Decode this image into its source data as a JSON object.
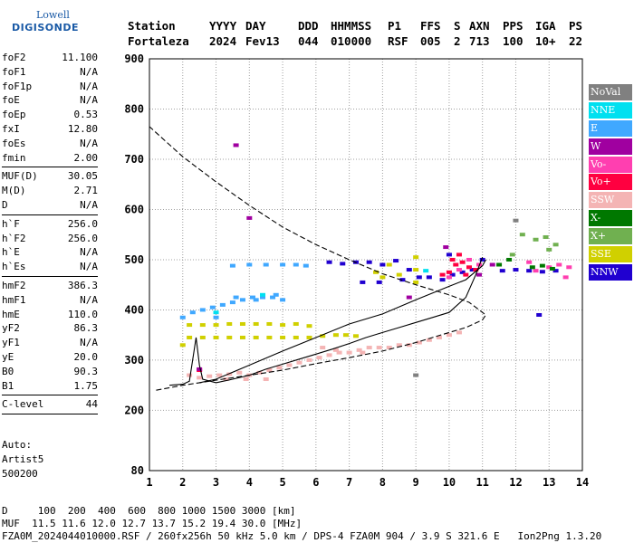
{
  "logo": {
    "line1": "Lowell",
    "line2": "DIGISONDE"
  },
  "header": {
    "labels": [
      "Station",
      "YYYY",
      "DAY",
      "DDD",
      "HHMMSS",
      "P1",
      "FFS",
      "S",
      "AXN",
      "PPS",
      "IGA",
      "PS"
    ],
    "values": [
      "Fortaleza",
      "2024",
      "Fev13",
      "044",
      "010000",
      "RSF",
      "005",
      "2",
      "713",
      "100",
      "10+",
      "22"
    ]
  },
  "params": {
    "group1": [
      {
        "k": "foF2",
        "v": "11.100"
      },
      {
        "k": "foF1",
        "v": "N/A"
      },
      {
        "k": "foF1p",
        "v": "N/A"
      },
      {
        "k": "foE",
        "v": "N/A"
      },
      {
        "k": "foEp",
        "v": "0.53"
      },
      {
        "k": "fxI",
        "v": "12.80"
      },
      {
        "k": "foEs",
        "v": "N/A"
      },
      {
        "k": "fmin",
        "v": "2.00"
      }
    ],
    "group2": [
      {
        "k": "MUF(D)",
        "v": "30.05"
      },
      {
        "k": "M(D)",
        "v": "2.71"
      },
      {
        "k": "D",
        "v": "N/A"
      }
    ],
    "group3": [
      {
        "k": "h`F",
        "v": "256.0"
      },
      {
        "k": "h`F2",
        "v": "256.0"
      },
      {
        "k": "h`E",
        "v": "N/A"
      },
      {
        "k": "h`Es",
        "v": "N/A"
      }
    ],
    "group4": [
      {
        "k": "hmF2",
        "v": "386.3"
      },
      {
        "k": "hmF1",
        "v": "N/A"
      },
      {
        "k": "hmE",
        "v": "110.0"
      },
      {
        "k": "yF2",
        "v": "86.3"
      },
      {
        "k": "yF1",
        "v": "N/A"
      },
      {
        "k": "yE",
        "v": "20.0"
      },
      {
        "k": "B0",
        "v": "90.3"
      },
      {
        "k": "B1",
        "v": "1.75"
      }
    ],
    "group5": [
      {
        "k": "C-level",
        "v": "44"
      }
    ]
  },
  "auto": {
    "line1": "Auto:",
    "line2": "Artist5",
    "line3": "500200"
  },
  "legend": [
    {
      "label": "NoVal",
      "color": "#808080"
    },
    {
      "label": "NNE",
      "color": "#00e0f0"
    },
    {
      "label": "E",
      "color": "#40a8ff"
    },
    {
      "label": "W",
      "color": "#a000a0"
    },
    {
      "label": "Vo-",
      "color": "#ff3fb0"
    },
    {
      "label": "Vo+",
      "color": "#ff0040"
    },
    {
      "label": "SSW",
      "color": "#f4b4b4"
    },
    {
      "label": "X-",
      "color": "#007800"
    },
    {
      "label": "X+",
      "color": "#70b050"
    },
    {
      "label": "SSE",
      "color": "#d0d000"
    },
    {
      "label": "NNW",
      "color": "#2000d0"
    }
  ],
  "footer": {
    "d_line": "D     100  200  400  600  800 1000 1500 3000 [km]",
    "muf_line": "MUF  11.5 11.6 12.0 12.7 13.7 15.2 19.4 30.0 [MHz]",
    "file_line": "FZA0M_2024044010000.RSF / 260fx256h 50 kHz 5.0 km / DPS-4 FZA0M 904 / 3.9 S 321.6 E   Ion2Png 1.3.20"
  },
  "chart_data": {
    "type": "scatter",
    "title": "",
    "xlabel": "",
    "ylabel": "",
    "xlim": [
      1,
      14
    ],
    "ylim": [
      80,
      900
    ],
    "x_ticks": [
      1,
      2,
      3,
      4,
      5,
      6,
      7,
      8,
      9,
      10,
      11,
      12,
      13,
      14
    ],
    "y_ticks": [
      80,
      200,
      300,
      400,
      500,
      600,
      700,
      800,
      900
    ],
    "grid": true,
    "series": [
      {
        "name": "E",
        "color": "#40a8ff",
        "points": [
          [
            2.0,
            385
          ],
          [
            2.3,
            395
          ],
          [
            2.6,
            400
          ],
          [
            2.9,
            405
          ],
          [
            3.2,
            410
          ],
          [
            3.5,
            415
          ],
          [
            3.8,
            420
          ],
          [
            4.1,
            425
          ],
          [
            4.4,
            425
          ],
          [
            4.7,
            425
          ],
          [
            5.0,
            420
          ],
          [
            3.0,
            385
          ],
          [
            3.6,
            425
          ],
          [
            4.2,
            420
          ],
          [
            4.8,
            430
          ],
          [
            3.5,
            488
          ],
          [
            4.0,
            490
          ],
          [
            4.5,
            490
          ],
          [
            5.0,
            490
          ],
          [
            5.4,
            490
          ],
          [
            5.7,
            488
          ]
        ]
      },
      {
        "name": "SSE",
        "color": "#d0d000",
        "points": [
          [
            2.2,
            370
          ],
          [
            2.6,
            370
          ],
          [
            3.0,
            370
          ],
          [
            3.4,
            372
          ],
          [
            3.8,
            372
          ],
          [
            4.2,
            372
          ],
          [
            4.6,
            372
          ],
          [
            5.0,
            370
          ],
          [
            5.4,
            372
          ],
          [
            5.8,
            368
          ],
          [
            2.2,
            345
          ],
          [
            2.6,
            345
          ],
          [
            3.0,
            345
          ],
          [
            3.4,
            345
          ],
          [
            3.8,
            345
          ],
          [
            4.2,
            345
          ],
          [
            4.6,
            345
          ],
          [
            5.0,
            345
          ],
          [
            5.4,
            345
          ],
          [
            5.8,
            345
          ],
          [
            6.2,
            348
          ],
          [
            6.6,
            350
          ],
          [
            6.9,
            350
          ],
          [
            7.2,
            348
          ],
          [
            2.0,
            330
          ],
          [
            8.0,
            465
          ],
          [
            8.5,
            470
          ],
          [
            9.0,
            480
          ],
          [
            9.0,
            505
          ],
          [
            9.0,
            455
          ],
          [
            8.2,
            490
          ],
          [
            7.8,
            475
          ]
        ]
      },
      {
        "name": "SSW",
        "color": "#f4b4b4",
        "points": [
          [
            2.5,
            265
          ],
          [
            2.8,
            268
          ],
          [
            3.1,
            270
          ],
          [
            3.4,
            272
          ],
          [
            3.7,
            275
          ],
          [
            4.0,
            270
          ],
          [
            4.3,
            275
          ],
          [
            4.6,
            280
          ],
          [
            4.9,
            285
          ],
          [
            5.2,
            290
          ],
          [
            5.5,
            295
          ],
          [
            5.8,
            300
          ],
          [
            6.1,
            305
          ],
          [
            6.4,
            310
          ],
          [
            6.7,
            315
          ],
          [
            7.0,
            315
          ],
          [
            7.3,
            320
          ],
          [
            7.6,
            325
          ],
          [
            7.9,
            325
          ],
          [
            8.2,
            325
          ],
          [
            8.5,
            330
          ],
          [
            8.8,
            330
          ],
          [
            9.1,
            335
          ],
          [
            9.4,
            340
          ],
          [
            9.7,
            345
          ],
          [
            10.0,
            350
          ],
          [
            10.3,
            355
          ],
          [
            6.2,
            325
          ],
          [
            6.6,
            320
          ],
          [
            7.4,
            315
          ],
          [
            3.3,
            262
          ],
          [
            3.9,
            262
          ],
          [
            4.5,
            262
          ],
          [
            2.2,
            270
          ]
        ]
      },
      {
        "name": "NNW",
        "color": "#2000d0",
        "points": [
          [
            6.4,
            495
          ],
          [
            6.8,
            492
          ],
          [
            7.2,
            495
          ],
          [
            7.6,
            495
          ],
          [
            8.0,
            490
          ],
          [
            8.4,
            498
          ],
          [
            8.8,
            480
          ],
          [
            9.1,
            465
          ],
          [
            9.4,
            465
          ],
          [
            9.8,
            460
          ],
          [
            10.1,
            470
          ],
          [
            10.4,
            475
          ],
          [
            10.7,
            480
          ],
          [
            11.0,
            500
          ],
          [
            11.6,
            478
          ],
          [
            12.0,
            480
          ],
          [
            12.4,
            478
          ],
          [
            12.8,
            476
          ],
          [
            13.2,
            478
          ],
          [
            7.4,
            455
          ],
          [
            7.9,
            455
          ],
          [
            12.7,
            390
          ],
          [
            10.0,
            510
          ],
          [
            8.6,
            460
          ]
        ]
      },
      {
        "name": "Vo+",
        "color": "#ff0040",
        "points": [
          [
            9.8,
            470
          ],
          [
            10.0,
            475
          ],
          [
            10.2,
            490
          ],
          [
            10.4,
            495
          ],
          [
            10.6,
            485
          ],
          [
            10.8,
            480
          ],
          [
            10.1,
            500
          ],
          [
            10.5,
            470
          ],
          [
            2.5,
            280
          ],
          [
            10.3,
            510
          ]
        ]
      },
      {
        "name": "Vo-",
        "color": "#ff3fb0",
        "points": [
          [
            10.0,
            465
          ],
          [
            10.3,
            480
          ],
          [
            10.6,
            500
          ],
          [
            10.9,
            490
          ],
          [
            12.4,
            495
          ],
          [
            12.6,
            478
          ],
          [
            13.0,
            485
          ],
          [
            13.3,
            490
          ],
          [
            13.6,
            485
          ],
          [
            13.5,
            465
          ]
        ]
      },
      {
        "name": "W",
        "color": "#a000a0",
        "points": [
          [
            3.6,
            728
          ],
          [
            4.0,
            583
          ],
          [
            9.9,
            525
          ],
          [
            10.9,
            470
          ],
          [
            8.8,
            425
          ],
          [
            11.3,
            490
          ],
          [
            2.5,
            282
          ]
        ]
      },
      {
        "name": "X-",
        "color": "#007800",
        "points": [
          [
            11.5,
            490
          ],
          [
            11.8,
            500
          ],
          [
            12.5,
            485
          ],
          [
            12.8,
            488
          ],
          [
            13.1,
            482
          ]
        ]
      },
      {
        "name": "X+",
        "color": "#70b050",
        "points": [
          [
            12.2,
            550
          ],
          [
            12.6,
            540
          ],
          [
            13.0,
            520
          ],
          [
            13.2,
            530
          ],
          [
            12.9,
            545
          ],
          [
            11.9,
            510
          ]
        ]
      },
      {
        "name": "NoVal",
        "color": "#808080",
        "points": [
          [
            9.0,
            270
          ],
          [
            12.0,
            578
          ]
        ]
      },
      {
        "name": "NNE",
        "color": "#00e0f0",
        "points": [
          [
            3.0,
            395
          ],
          [
            4.4,
            430
          ],
          [
            9.3,
            478
          ]
        ]
      }
    ],
    "curves": {
      "trace": [
        [
          1.6,
          250
        ],
        [
          2.0,
          252
        ],
        [
          2.2,
          258
        ],
        [
          2.4,
          345
        ],
        [
          2.5,
          290
        ],
        [
          2.6,
          262
        ],
        [
          3.0,
          255
        ],
        [
          3.5,
          262
        ],
        [
          4.0,
          270
        ],
        [
          4.5,
          282
        ],
        [
          5.0,
          292
        ],
        [
          5.5,
          302
        ],
        [
          6.0,
          312
        ],
        [
          6.5,
          322
        ],
        [
          7.0,
          333
        ],
        [
          7.5,
          345
        ],
        [
          8.0,
          355
        ],
        [
          8.5,
          365
        ],
        [
          9.0,
          375
        ],
        [
          9.5,
          385
        ],
        [
          10.0,
          395
        ],
        [
          10.5,
          425
        ],
        [
          10.8,
          470
        ],
        [
          11.0,
          505
        ]
      ],
      "upper_black": [
        [
          2.5,
          255
        ],
        [
          3.0,
          262
        ],
        [
          4.0,
          290
        ],
        [
          5.0,
          318
        ],
        [
          6.0,
          345
        ],
        [
          7.0,
          372
        ],
        [
          8.0,
          392
        ],
        [
          9.0,
          420
        ],
        [
          10.0,
          447
        ],
        [
          10.5,
          460
        ],
        [
          11.0,
          488
        ],
        [
          11.1,
          500
        ]
      ],
      "lower_black": [
        [
          1.2,
          240
        ],
        [
          2.0,
          250
        ],
        [
          2.5,
          255
        ],
        [
          3.0,
          260
        ],
        [
          4.0,
          270
        ],
        [
          5.0,
          280
        ],
        [
          6.0,
          293
        ],
        [
          7.0,
          305
        ],
        [
          8.0,
          318
        ],
        [
          9.0,
          335
        ],
        [
          10.0,
          355
        ],
        [
          10.5,
          365
        ],
        [
          11.0,
          380
        ],
        [
          11.1,
          390
        ],
        [
          10.6,
          415
        ],
        [
          10.0,
          430
        ],
        [
          9.0,
          450
        ],
        [
          8.0,
          472
        ],
        [
          7.0,
          500
        ],
        [
          6.0,
          530
        ],
        [
          5.0,
          565
        ],
        [
          4.0,
          608
        ],
        [
          3.0,
          655
        ],
        [
          2.0,
          705
        ],
        [
          1.0,
          765
        ]
      ]
    }
  }
}
